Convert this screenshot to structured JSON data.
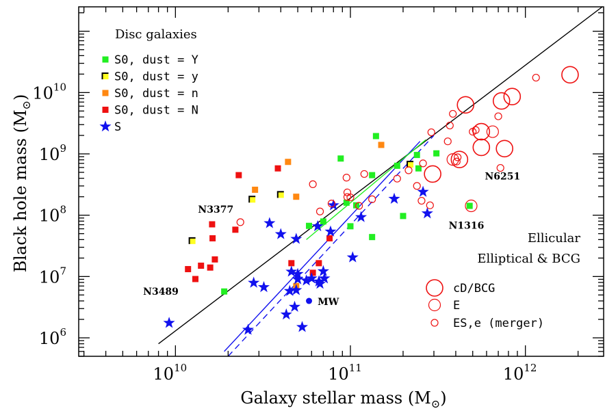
{
  "chart_data": {
    "type": "scatter",
    "x_scale": "log",
    "y_scale": "log",
    "xlim": [
      2800000000.0,
      2800000000000.0
    ],
    "ylim": [
      500000.0,
      250000000000.0
    ],
    "xlabel_main": "Galaxy stellar mass (M",
    "xlabel_close": ")",
    "ylabel_main": "Black hole mass (M",
    "ylabel_close": ")",
    "sun_symbol": "⊙",
    "x_ticks": [
      {
        "value": 10000000000.0,
        "base": "10",
        "exp": "10"
      },
      {
        "value": 100000000000.0,
        "base": "10",
        "exp": "11"
      },
      {
        "value": 1000000000000.0,
        "base": "10",
        "exp": "12"
      }
    ],
    "y_ticks": [
      {
        "value": 1000000.0,
        "base": "10",
        "exp": "6"
      },
      {
        "value": 10000000.0,
        "base": "10",
        "exp": "7"
      },
      {
        "value": 100000000.0,
        "base": "10",
        "exp": "8"
      },
      {
        "value": 1000000000.0,
        "base": "10",
        "exp": "9"
      },
      {
        "value": 10000000000.0,
        "base": "10",
        "exp": "10"
      }
    ],
    "legend_disc": {
      "title": "Disc galaxies",
      "entries": [
        {
          "label": "S0, dust = Y",
          "marker": "square",
          "color": "#22ee22"
        },
        {
          "label": "S0, dust = y",
          "marker": "square-half",
          "color": "#ffff22"
        },
        {
          "label": "S0, dust = n",
          "marker": "square",
          "color": "#ff8811"
        },
        {
          "label": "S0, dust = N",
          "marker": "square",
          "color": "#ee1111"
        },
        {
          "label": "S",
          "marker": "star",
          "color": "#1111ee"
        }
      ]
    },
    "legend_ell": {
      "title_1": "Ellicular",
      "title_2": "Elliptical & BCG",
      "entries": [
        {
          "label": "cD/BCG",
          "marker": "circle-large",
          "color": "#ee1111"
        },
        {
          "label": "E",
          "marker": "circle-medium",
          "color": "#ee1111"
        },
        {
          "label": "ES,e (merger)",
          "marker": "circle-small",
          "color": "#ee1111"
        }
      ]
    },
    "annotations": [
      {
        "text": "N3377",
        "x": 20000000000.0,
        "y": 102000000.0
      },
      {
        "text": "N3489",
        "x": 11000000000.0,
        "y": 5700000.0
      },
      {
        "text": "N1316",
        "x": 460000000000.0,
        "y": 96000000.0
      },
      {
        "text": "N6251",
        "x": 630000000000.0,
        "y": 610000000.0
      },
      {
        "text": "MW",
        "x": 61000000000.0,
        "y": 3900000.0
      }
    ],
    "lines": [
      {
        "name": "",
        "color": "#000000",
        "dash": false,
        "points": [
          [
            8000000000.0,
            800000.0
          ],
          [
            2750000000000.0,
            250000000000.0
          ]
        ]
      },
      {
        "name": "",
        "color": "#1111ee",
        "dash": false,
        "points": [
          [
            19000000000.0,
            600000.0
          ],
          [
            250000000000.0,
            1600000000.0
          ]
        ]
      },
      {
        "name": "",
        "color": "#1111ee",
        "dash": true,
        "points": [
          [
            20000000000.0,
            500000.0
          ],
          [
            300000000000.0,
            2000000000.0
          ]
        ]
      },
      {
        "name": "",
        "color": "#22ee22",
        "dash": false,
        "points": [
          [
            56000000000.0,
            40000000.0
          ],
          [
            270000000000.0,
            1700000000.0
          ]
        ]
      }
    ],
    "series": [
      {
        "name": "S0, dust = Y",
        "marker": "square",
        "color": "#22ee22",
        "points": [
          [
            19000000000.0,
            5700000.0
          ],
          [
            58000000000.0,
            67000000.0
          ],
          [
            70000000000.0,
            79000000.0
          ],
          [
            95000000000.0,
            160000000.0
          ],
          [
            100000000000.0,
            66000000.0
          ],
          [
            108000000000.0,
            145000000.0
          ],
          [
            88000000000.0,
            840000000.0
          ],
          [
            133000000000.0,
            450000000.0
          ],
          [
            133000000000.0,
            44000000.0
          ],
          [
            140000000000.0,
            1950000000.0
          ],
          [
            185000000000.0,
            640000000.0
          ],
          [
            200000000000.0,
            97000000.0
          ],
          [
            240000000000.0,
            960000000.0
          ],
          [
            245000000000.0,
            580000000.0
          ],
          [
            310000000000.0,
            1020000000.0
          ],
          [
            480000000000.0,
            142000000.0
          ]
        ]
      },
      {
        "name": "S0, dust = y",
        "marker": "square-half",
        "color": "#ffff22",
        "points": [
          [
            12500000000.0,
            38000000.0
          ],
          [
            27500000000.0,
            180000000.0
          ],
          [
            40000000000.0,
            215000000.0
          ],
          [
            220000000000.0,
            670000000.0
          ]
        ]
      },
      {
        "name": "S0, dust = n",
        "marker": "square",
        "color": "#ff8811",
        "points": [
          [
            28500000000.0,
            260000000.0
          ],
          [
            44000000000.0,
            740000000.0
          ],
          [
            49000000000.0,
            200000000.0
          ],
          [
            49000000000.0,
            7000000.0
          ],
          [
            150000000000.0,
            1400000000.0
          ]
        ]
      },
      {
        "name": "S0, dust = N",
        "marker": "square",
        "color": "#ee1111",
        "points": [
          [
            11800000000.0,
            13200000.0
          ],
          [
            13000000000.0,
            9100000.0
          ],
          [
            14000000000.0,
            15000000.0
          ],
          [
            15800000000.0,
            14000000.0
          ],
          [
            16200000000.0,
            71000000.0
          ],
          [
            16300000000.0,
            42000000.0
          ],
          [
            16800000000.0,
            19000000.0
          ],
          [
            22000000000.0,
            58000000.0
          ],
          [
            23000000000.0,
            450000000.0
          ],
          [
            38500000000.0,
            580000000.0
          ],
          [
            46000000000.0,
            16500000.0
          ],
          [
            61000000000.0,
            11500000.0
          ],
          [
            66000000000.0,
            16500000.0
          ],
          [
            76000000000.0,
            42000000.0
          ]
        ]
      },
      {
        "name": "S",
        "marker": "star",
        "color": "#1111ee",
        "points": [
          [
            9200000000.0,
            1750000.0
          ],
          [
            26000000000.0,
            1350000.0
          ],
          [
            28000000000.0,
            7900000.0
          ],
          [
            32000000000.0,
            6700000.0
          ],
          [
            34500000000.0,
            74000000.0
          ],
          [
            40000000000.0,
            49000000.0
          ],
          [
            43000000000.0,
            2400000.0
          ],
          [
            45000000000.0,
            5800000.0
          ],
          [
            46000000000.0,
            12000000.0
          ],
          [
            48000000000.0,
            3200000.0
          ],
          [
            49000000000.0,
            6000000.0
          ],
          [
            49000000000.0,
            41000000.0
          ],
          [
            50000000000.0,
            11000000.0
          ],
          [
            50000000000.0,
            9000000.0
          ],
          [
            53000000000.0,
            1500000.0
          ],
          [
            56000000000.0,
            8600000.0
          ],
          [
            60000000000.0,
            9300000.0
          ],
          [
            65000000000.0,
            66000000.0
          ],
          [
            66000000000.0,
            8300000.0
          ],
          [
            67000000000.0,
            7600000.0
          ],
          [
            70000000000.0,
            12200000.0
          ],
          [
            71000000000.0,
            9300000.0
          ],
          [
            77000000000.0,
            54000000.0
          ],
          [
            80000000000.0,
            145000000.0
          ],
          [
            103000000000.0,
            20500000.0
          ],
          [
            115000000000.0,
            93000000.0
          ],
          [
            178000000000.0,
            185000000.0
          ],
          [
            260000000000.0,
            240000000.0
          ],
          [
            275000000000.0,
            107000000.0
          ]
        ]
      },
      {
        "name": "MW",
        "marker": "dot",
        "color": "#1111ee",
        "points": [
          [
            58000000000.0,
            4000000.0
          ]
        ]
      },
      {
        "name": "ES,e (merger)",
        "marker": "circle-small",
        "color": "#ee1111",
        "points": [
          [
            23500000000.0,
            77000000.0
          ],
          [
            61000000000.0,
            320000000.0
          ],
          [
            67000000000.0,
            115000000.0
          ],
          [
            78000000000.0,
            155000000.0
          ],
          [
            96000000000.0,
            235000000.0
          ],
          [
            96000000000.0,
            198000000.0
          ],
          [
            100000000000.0,
            195000000.0
          ],
          [
            112000000000.0,
            142000000.0
          ],
          [
            120000000000.0,
            470000000.0
          ],
          [
            133000000000.0,
            182000000.0
          ],
          [
            185000000000.0,
            395000000.0
          ],
          [
            215000000000.0,
            540000000.0
          ],
          [
            240000000000.0,
            300000000.0
          ],
          [
            260000000000.0,
            700000000.0
          ],
          [
            285000000000.0,
            145000000.0
          ],
          [
            290000000000.0,
            2250000000.0
          ],
          [
            360000000000.0,
            1600000000.0
          ],
          [
            370000000000.0,
            2900000000.0
          ],
          [
            385000000000.0,
            4500000000.0
          ],
          [
            405000000000.0,
            750000000.0
          ],
          [
            410000000000.0,
            880000000.0
          ],
          [
            500000000000.0,
            2300000000.0
          ],
          [
            520000000000.0,
            2450000000.0
          ],
          [
            700000000000.0,
            4100000000.0
          ],
          [
            720000000000.0,
            590000000.0
          ],
          [
            1150000000000.0,
            17500000000.0
          ],
          [
            95000000000.0,
            410000000.0
          ],
          [
            255000000000.0,
            172000000.0
          ]
        ]
      },
      {
        "name": "E",
        "marker": "circle-medium",
        "color": "#ee1111",
        "points": [
          [
            490000000000.0,
            142000000.0
          ],
          [
            650000000000.0,
            2300000000.0
          ],
          [
            385000000000.0,
            810000000.0
          ]
        ]
      },
      {
        "name": "cD/BCG",
        "marker": "circle-large",
        "color": "#ee1111",
        "points": [
          [
            295000000000.0,
            470000000.0
          ],
          [
            420000000000.0,
            810000000.0
          ],
          [
            455000000000.0,
            6300000000.0
          ],
          [
            560000000000.0,
            2300000000.0
          ],
          [
            560000000000.0,
            1280000000.0
          ],
          [
            730000000000.0,
            7300000000.0
          ],
          [
            760000000000.0,
            1220000000.0
          ],
          [
            840000000000.0,
            8600000000.0
          ],
          [
            1800000000000.0,
            19500000000.0
          ]
        ]
      }
    ]
  }
}
